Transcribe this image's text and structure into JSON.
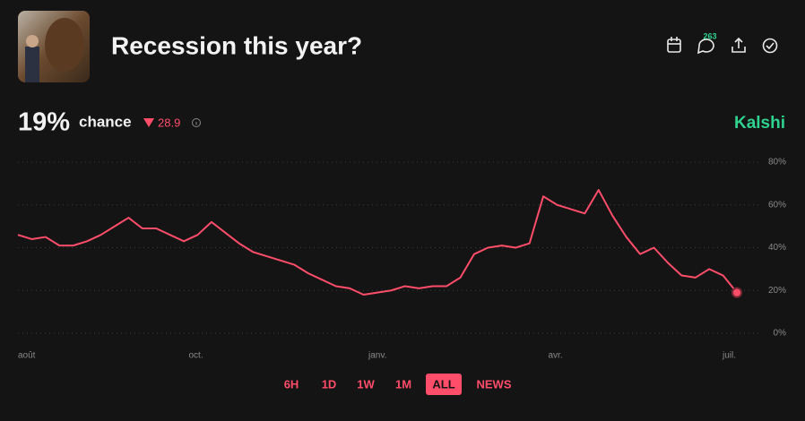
{
  "header": {
    "title": "Recession this year?",
    "comment_count": "263",
    "probability": "19%",
    "chance_label": "chance",
    "change": "28.9",
    "source": "Kalshi"
  },
  "range_buttons": [
    "6H",
    "1D",
    "1W",
    "1M",
    "ALL",
    "NEWS"
  ],
  "chart_data": {
    "type": "line",
    "color": "#ff4d6a",
    "categories": [
      "août",
      null,
      null,
      null,
      null,
      null,
      null,
      null,
      null,
      null,
      null,
      null,
      null,
      "oct.",
      null,
      null,
      null,
      null,
      null,
      null,
      null,
      null,
      null,
      null,
      null,
      null,
      "janv.",
      null,
      null,
      null,
      null,
      null,
      null,
      null,
      null,
      null,
      null,
      null,
      null,
      "avr.",
      null,
      null,
      null,
      null,
      null,
      null,
      null,
      null,
      null,
      null,
      null,
      null,
      "juil."
    ],
    "values": [
      46,
      44,
      45,
      41,
      41,
      43,
      46,
      50,
      54,
      49,
      49,
      46,
      43,
      46,
      52,
      47,
      42,
      38,
      36,
      34,
      32,
      28,
      25,
      22,
      21,
      18,
      19,
      20,
      22,
      21,
      22,
      22,
      26,
      37,
      40,
      41,
      40,
      42,
      64,
      60,
      58,
      56,
      67,
      55,
      45,
      37,
      40,
      33,
      27,
      26,
      30,
      27,
      19
    ],
    "ylim": [
      0,
      80
    ],
    "yticks": [
      {
        "value": 0,
        "label": "0%"
      },
      {
        "value": 20,
        "label": "20%"
      },
      {
        "value": 40,
        "label": "40%"
      },
      {
        "value": 60,
        "label": "60%"
      },
      {
        "value": 80,
        "label": "80%"
      }
    ],
    "grid": true
  }
}
